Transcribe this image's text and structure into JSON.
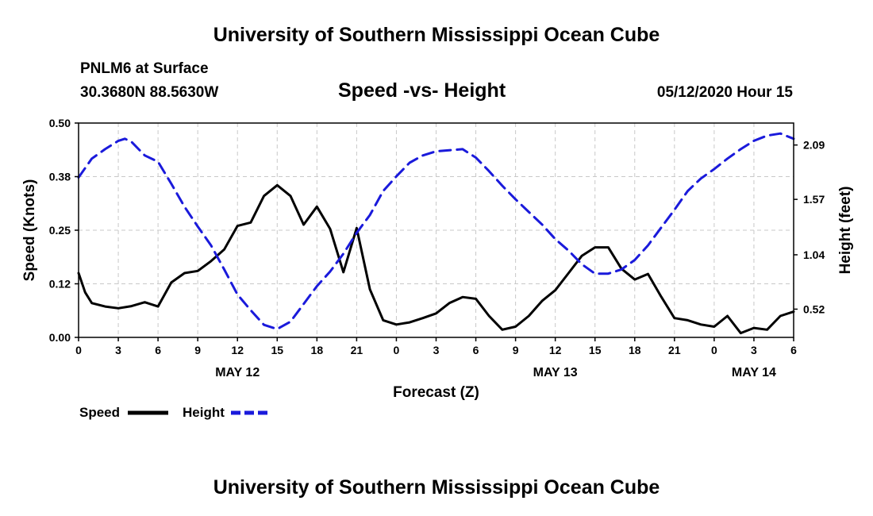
{
  "header": {
    "title": "University of Southern Mississippi Ocean Cube",
    "station": "PNLM6 at Surface",
    "coords": "30.3680N 88.5630W",
    "chart_title": "Speed -vs- Height",
    "datetime": "05/12/2020 Hour 15"
  },
  "footer": {
    "title": "University of Southern Mississippi Ocean Cube"
  },
  "chart_data": {
    "type": "line",
    "title": "Speed -vs- Height",
    "xlabel": "Forecast (Z)",
    "ylabel_left": "Speed (Knots)",
    "ylabel_right": "Height (feet)",
    "x_unit": "hours since 2020-05-12 00Z",
    "xlim": [
      0,
      54
    ],
    "ylim_left": [
      0,
      0.5
    ],
    "ylim_right": [
      0.25,
      2.3
    ],
    "grid": true,
    "legend_position": "bottom-left",
    "x_ticks": [
      0,
      3,
      6,
      9,
      12,
      15,
      18,
      21,
      24,
      27,
      30,
      33,
      36,
      39,
      42,
      45,
      48,
      51,
      54
    ],
    "x_tick_labels": [
      "0",
      "3",
      "6",
      "9",
      "12",
      "15",
      "18",
      "21",
      "0",
      "3",
      "6",
      "9",
      "12",
      "15",
      "18",
      "21",
      "0",
      "3",
      "6"
    ],
    "day_labels": [
      {
        "x": 12,
        "label": "MAY 12"
      },
      {
        "x": 36,
        "label": "MAY 13"
      },
      {
        "x": 51,
        "label": "MAY 14"
      }
    ],
    "y_left_ticks": [
      0,
      0.125,
      0.25,
      0.375,
      0.5
    ],
    "y_left_tick_labels": [
      "0.00",
      "0.12",
      "0.25",
      "0.38",
      "0.50"
    ],
    "y_right_ticks": [
      0.52,
      1.04,
      1.57,
      2.09
    ],
    "y_right_tick_labels": [
      "0.52",
      "1.04",
      "1.57",
      "2.09"
    ],
    "series": [
      {
        "name": "Speed",
        "color": "#000000",
        "axis": "left",
        "dash": "solid",
        "x": [
          0,
          0.5,
          1,
          2,
          3,
          4,
          5,
          6,
          7,
          8,
          9,
          10,
          11,
          12,
          13,
          14,
          15,
          16,
          17,
          18,
          19,
          20,
          21,
          22,
          23,
          24,
          25,
          26,
          27,
          28,
          29,
          30,
          31,
          32,
          33,
          34,
          35,
          36,
          37,
          38,
          39,
          40,
          41,
          42,
          43,
          44,
          45,
          46,
          47,
          48,
          49,
          50,
          51,
          52,
          53,
          54
        ],
        "values": [
          0.15,
          0.105,
          0.08,
          0.072,
          0.068,
          0.073,
          0.082,
          0.072,
          0.128,
          0.15,
          0.155,
          0.178,
          0.205,
          0.26,
          0.268,
          0.33,
          0.355,
          0.33,
          0.263,
          0.305,
          0.253,
          0.152,
          0.255,
          0.112,
          0.04,
          0.03,
          0.035,
          0.045,
          0.056,
          0.08,
          0.094,
          0.09,
          0.05,
          0.018,
          0.025,
          0.05,
          0.085,
          0.11,
          0.15,
          0.19,
          0.21,
          0.21,
          0.16,
          0.135,
          0.148,
          0.095,
          0.045,
          0.04,
          0.03,
          0.025,
          0.05,
          0.01,
          0.022,
          0.018,
          0.05,
          0.06
        ]
      },
      {
        "name": "Height",
        "color": "#1a1adb",
        "axis": "right",
        "dash": "dashed",
        "x": [
          0,
          1,
          2,
          3,
          3.5,
          4,
          5,
          6,
          7,
          8,
          9,
          10,
          11,
          12,
          13,
          14,
          15,
          16,
          17,
          18,
          19,
          20,
          21,
          22,
          23,
          24,
          25,
          26,
          27,
          28,
          29,
          30,
          31,
          32,
          33,
          34,
          35,
          36,
          37,
          38,
          39,
          40,
          41,
          42,
          43,
          44,
          45,
          46,
          47,
          48,
          49,
          50,
          51,
          52,
          53,
          54
        ],
        "values": [
          1.78,
          1.96,
          2.05,
          2.13,
          2.15,
          2.12,
          1.99,
          1.93,
          1.72,
          1.5,
          1.31,
          1.13,
          0.9,
          0.66,
          0.51,
          0.37,
          0.33,
          0.4,
          0.57,
          0.74,
          0.88,
          1.05,
          1.25,
          1.42,
          1.65,
          1.79,
          1.92,
          1.99,
          2.03,
          2.04,
          2.05,
          1.97,
          1.84,
          1.7,
          1.57,
          1.45,
          1.33,
          1.19,
          1.08,
          0.95,
          0.86,
          0.86,
          0.9,
          0.99,
          1.13,
          1.3,
          1.47,
          1.65,
          1.77,
          1.86,
          1.96,
          2.05,
          2.13,
          2.18,
          2.2,
          2.15
        ]
      }
    ]
  }
}
